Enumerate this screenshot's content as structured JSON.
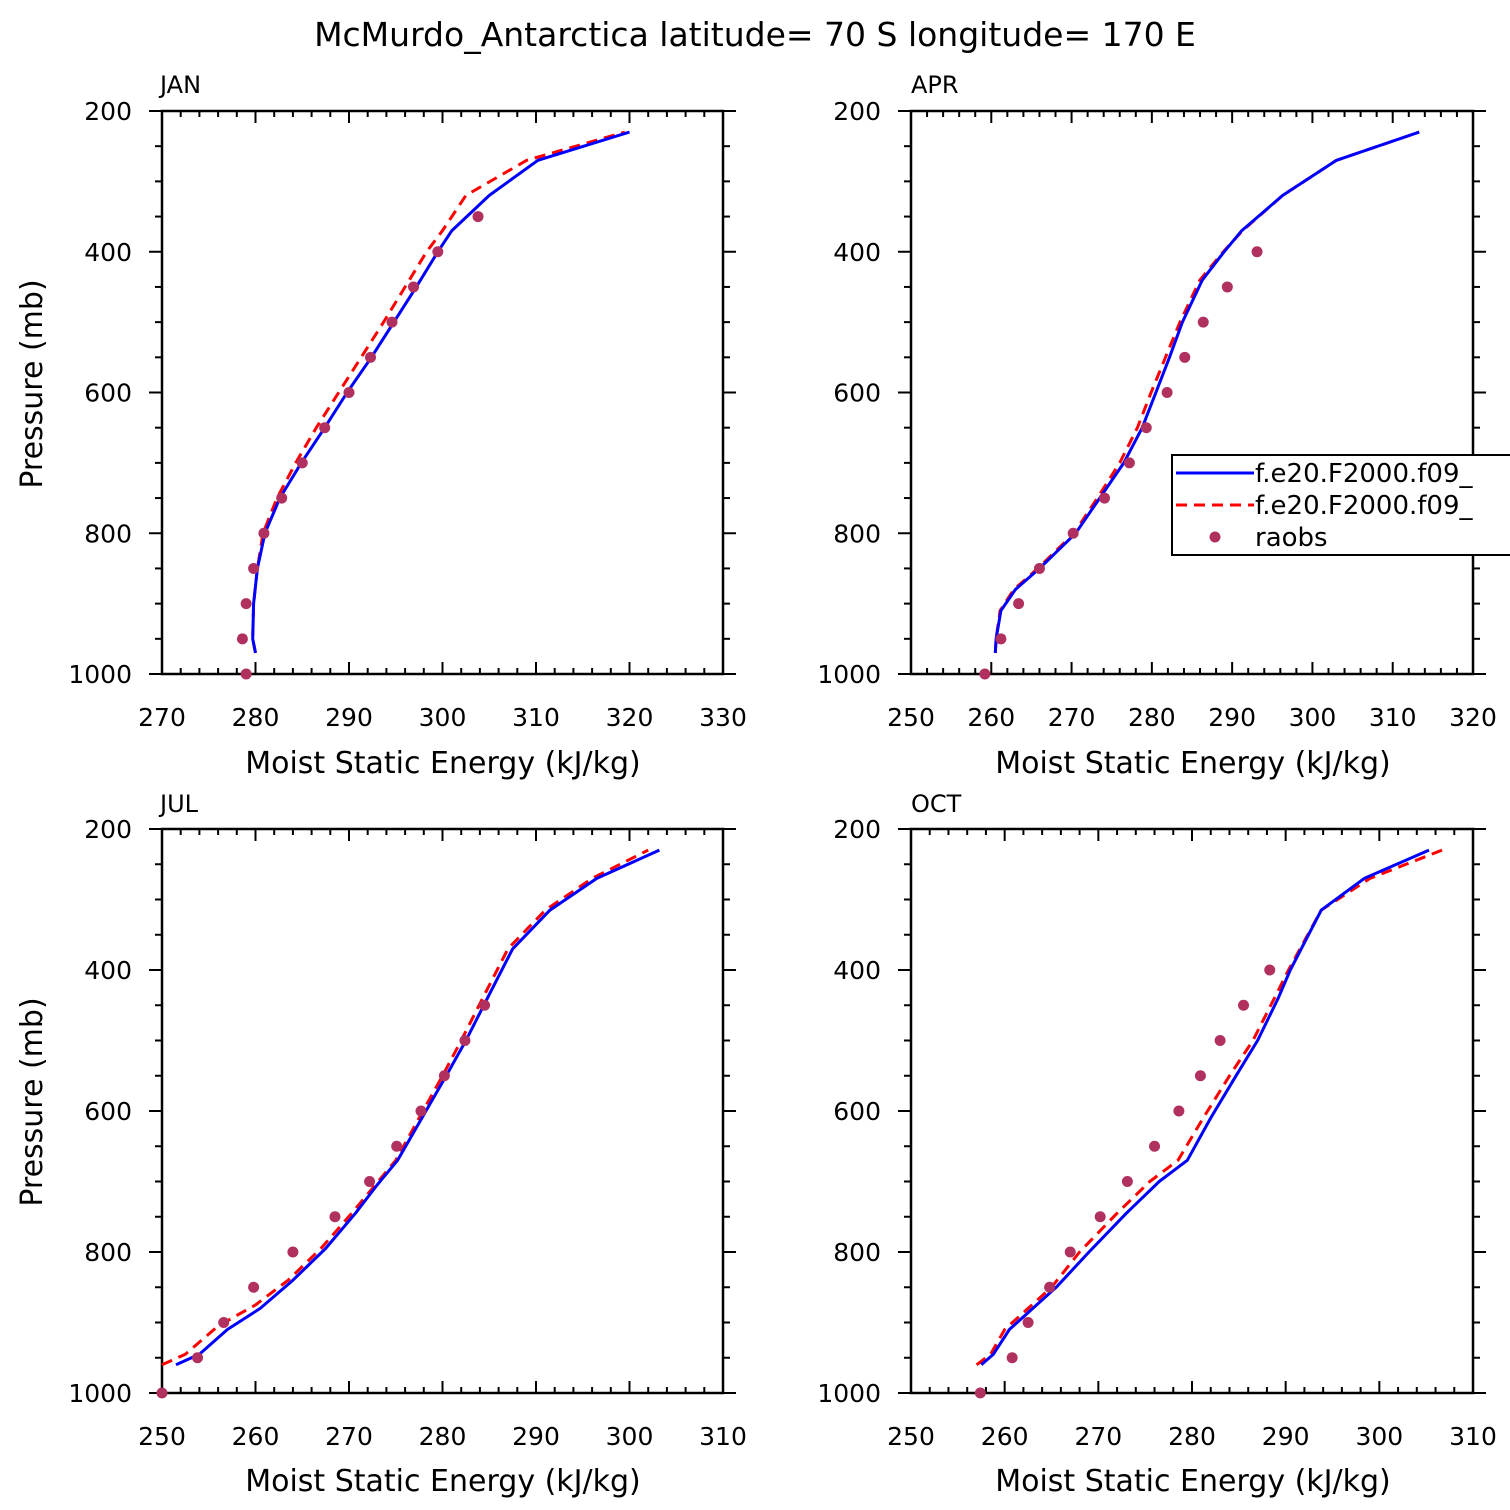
{
  "title": "McMurdo_Antarctica  latitude= 70 S longitude= 170 E",
  "legend": {
    "entries": [
      {
        "label": "f.e20.F2000.f09_",
        "style": "solid",
        "color": "#0000ff"
      },
      {
        "label": "f.e20.F2000.f09_",
        "style": "dashed",
        "color": "#ff0000"
      },
      {
        "label": "raobs",
        "style": "marker",
        "color": "#b03060"
      }
    ]
  },
  "colors": {
    "model1": "#0000ff",
    "model2": "#ff0000",
    "raobs": "#b03060"
  },
  "chart_data": [
    {
      "type": "line",
      "panel": "JAN",
      "xlabel": "Moist Static Energy (kJ/kg)",
      "ylabel": "Pressure (mb)",
      "xlim": [
        270,
        330
      ],
      "ylim": [
        1000,
        200
      ],
      "xticks": [
        "270",
        "280",
        "290",
        "300",
        "310",
        "320",
        "330"
      ],
      "yticks": [
        "200",
        "400",
        "600",
        "800",
        "1000"
      ],
      "series": [
        {
          "name": "f.e20.F2000.f09_",
          "style": "solid",
          "points": [
            [
              280.0,
              970
            ],
            [
              279.7,
              950
            ],
            [
              279.8,
              900
            ],
            [
              280.2,
              850
            ],
            [
              281.0,
              800
            ],
            [
              282.6,
              750
            ],
            [
              284.9,
              700
            ],
            [
              287.4,
              650
            ],
            [
              289.8,
              600
            ],
            [
              292.4,
              550
            ],
            [
              294.8,
              500
            ],
            [
              297.2,
              450
            ],
            [
              299.5,
              400
            ],
            [
              301.0,
              370
            ],
            [
              305.0,
              320
            ],
            [
              310.2,
              270
            ],
            [
              320.0,
              230
            ]
          ]
        },
        {
          "name": "f.e20.F2000.f09_",
          "style": "dashed",
          "points": [
            [
              280.0,
              970
            ],
            [
              279.7,
              950
            ],
            [
              279.8,
              900
            ],
            [
              280.2,
              850
            ],
            [
              280.8,
              800
            ],
            [
              282.3,
              750
            ],
            [
              284.3,
              700
            ],
            [
              286.5,
              650
            ],
            [
              288.9,
              600
            ],
            [
              291.3,
              550
            ],
            [
              293.7,
              500
            ],
            [
              296.0,
              450
            ],
            [
              298.3,
              400
            ],
            [
              300.0,
              370
            ],
            [
              302.5,
              320
            ],
            [
              309.0,
              270
            ],
            [
              319.5,
              230
            ]
          ]
        },
        {
          "name": "raobs",
          "style": "marker",
          "points": [
            [
              279.0,
              1000
            ],
            [
              278.6,
              950
            ],
            [
              279.0,
              900
            ],
            [
              279.8,
              850
            ],
            [
              280.9,
              800
            ],
            [
              282.8,
              750
            ],
            [
              285.0,
              700
            ],
            [
              287.4,
              650
            ],
            [
              290.0,
              600
            ],
            [
              292.3,
              550
            ],
            [
              294.6,
              500
            ],
            [
              296.9,
              450
            ],
            [
              299.5,
              400
            ],
            [
              303.8,
              350
            ]
          ]
        }
      ]
    },
    {
      "type": "line",
      "panel": "APR",
      "xlabel": "Moist Static Energy (kJ/kg)",
      "ylabel": "",
      "xlim": [
        250,
        320
      ],
      "ylim": [
        1000,
        200
      ],
      "xticks": [
        "250",
        "260",
        "270",
        "280",
        "290",
        "300",
        "310",
        "320"
      ],
      "yticks": [
        "200",
        "400",
        "600",
        "800",
        "1000"
      ],
      "series": [
        {
          "name": "f.e20.F2000.f09_",
          "style": "solid",
          "points": [
            [
              260.5,
              970
            ],
            [
              260.6,
              950
            ],
            [
              261.2,
              910
            ],
            [
              263.0,
              880
            ],
            [
              266.0,
              850
            ],
            [
              270.5,
              800
            ],
            [
              273.5,
              750
            ],
            [
              276.5,
              700
            ],
            [
              278.8,
              650
            ],
            [
              280.5,
              600
            ],
            [
              282.2,
              550
            ],
            [
              283.8,
              500
            ],
            [
              286.3,
              440
            ],
            [
              289.0,
              400
            ],
            [
              291.2,
              370
            ],
            [
              296.3,
              320
            ],
            [
              303.0,
              270
            ],
            [
              313.3,
              230
            ]
          ]
        },
        {
          "name": "f.e20.F2000.f09_",
          "style": "dashed",
          "points": [
            [
              260.5,
              970
            ],
            [
              260.6,
              950
            ],
            [
              261.1,
              910
            ],
            [
              262.8,
              880
            ],
            [
              265.8,
              850
            ],
            [
              270.3,
              800
            ],
            [
              273.2,
              750
            ],
            [
              276.0,
              700
            ],
            [
              278.2,
              650
            ],
            [
              279.9,
              600
            ],
            [
              281.7,
              550
            ],
            [
              283.5,
              500
            ],
            [
              286.0,
              440
            ],
            [
              288.9,
              400
            ],
            [
              291.3,
              370
            ],
            [
              296.3,
              320
            ],
            [
              303.0,
              270
            ],
            [
              313.3,
              230
            ]
          ]
        },
        {
          "name": "raobs",
          "style": "marker",
          "points": [
            [
              259.2,
              1000
            ],
            [
              261.2,
              950
            ],
            [
              263.4,
              900
            ],
            [
              266.0,
              850
            ],
            [
              270.2,
              800
            ],
            [
              274.1,
              750
            ],
            [
              277.2,
              700
            ],
            [
              279.3,
              650
            ],
            [
              281.9,
              600
            ],
            [
              284.1,
              550
            ],
            [
              286.4,
              500
            ],
            [
              289.4,
              450
            ],
            [
              293.1,
              400
            ]
          ]
        }
      ]
    },
    {
      "type": "line",
      "panel": "JUL",
      "xlabel": "Moist Static Energy (kJ/kg)",
      "ylabel": "Pressure (mb)",
      "xlim": [
        250,
        310
      ],
      "ylim": [
        1000,
        200
      ],
      "xticks": [
        "250",
        "260",
        "270",
        "280",
        "290",
        "300",
        "310"
      ],
      "yticks": [
        "200",
        "400",
        "600",
        "800",
        "1000"
      ],
      "series": [
        {
          "name": "f.e20.F2000.f09_",
          "style": "solid",
          "points": [
            [
              251.5,
              960
            ],
            [
              254.0,
              945
            ],
            [
              257.0,
              910
            ],
            [
              260.5,
              880
            ],
            [
              264.0,
              840
            ],
            [
              267.5,
              795
            ],
            [
              270.7,
              745
            ],
            [
              273.0,
              705
            ],
            [
              275.2,
              670
            ],
            [
              277.8,
              610
            ],
            [
              280.4,
              550
            ],
            [
              282.5,
              500
            ],
            [
              284.8,
              440
            ],
            [
              287.5,
              370
            ],
            [
              291.5,
              315
            ],
            [
              296.5,
              270
            ],
            [
              303.2,
              230
            ]
          ]
        },
        {
          "name": "f.e20.F2000.f09_",
          "style": "dashed",
          "points": [
            [
              250.0,
              960
            ],
            [
              252.5,
              945
            ],
            [
              256.0,
              905
            ],
            [
              260.0,
              875
            ],
            [
              263.5,
              840
            ],
            [
              267.0,
              795
            ],
            [
              270.3,
              745
            ],
            [
              272.8,
              705
            ],
            [
              275.0,
              670
            ],
            [
              277.5,
              610
            ],
            [
              280.0,
              550
            ],
            [
              282.0,
              500
            ],
            [
              284.3,
              440
            ],
            [
              287.0,
              370
            ],
            [
              291.0,
              315
            ],
            [
              296.0,
              270
            ],
            [
              302.0,
              230
            ]
          ]
        },
        {
          "name": "raobs",
          "style": "marker",
          "points": [
            [
              250.0,
              1000
            ],
            [
              253.8,
              950
            ],
            [
              256.6,
              900
            ],
            [
              259.8,
              850
            ],
            [
              264.0,
              800
            ],
            [
              268.5,
              750
            ],
            [
              272.2,
              700
            ],
            [
              275.1,
              650
            ],
            [
              277.7,
              600
            ],
            [
              280.2,
              550
            ],
            [
              282.4,
              500
            ],
            [
              284.5,
              450
            ]
          ]
        }
      ]
    },
    {
      "type": "line",
      "panel": "OCT",
      "xlabel": "Moist Static Energy (kJ/kg)",
      "ylabel": "",
      "xlim": [
        250,
        310
      ],
      "ylim": [
        1000,
        200
      ],
      "xticks": [
        "250",
        "260",
        "270",
        "280",
        "290",
        "300",
        "310"
      ],
      "yticks": [
        "200",
        "400",
        "600",
        "800",
        "1000"
      ],
      "series": [
        {
          "name": "f.e20.F2000.f09_",
          "style": "solid",
          "points": [
            [
              257.5,
              960
            ],
            [
              258.8,
              945
            ],
            [
              260.5,
              910
            ],
            [
              263.0,
              880
            ],
            [
              265.5,
              850
            ],
            [
              269.0,
              800
            ],
            [
              273.0,
              745
            ],
            [
              276.5,
              700
            ],
            [
              279.5,
              670
            ],
            [
              282.0,
              610
            ],
            [
              284.7,
              550
            ],
            [
              287.0,
              500
            ],
            [
              289.2,
              440
            ],
            [
              290.5,
              400
            ],
            [
              293.8,
              315
            ],
            [
              298.4,
              270
            ],
            [
              305.3,
              230
            ]
          ]
        },
        {
          "name": "f.e20.F2000.f09_",
          "style": "dashed",
          "points": [
            [
              257.0,
              960
            ],
            [
              258.5,
              945
            ],
            [
              260.0,
              910
            ],
            [
              262.5,
              880
            ],
            [
              265.0,
              850
            ],
            [
              268.0,
              800
            ],
            [
              272.0,
              745
            ],
            [
              275.5,
              700
            ],
            [
              278.5,
              670
            ],
            [
              281.2,
              610
            ],
            [
              284.0,
              550
            ],
            [
              286.5,
              500
            ],
            [
              288.8,
              440
            ],
            [
              290.3,
              400
            ],
            [
              293.8,
              315
            ],
            [
              299.0,
              270
            ],
            [
              306.7,
              230
            ]
          ]
        },
        {
          "name": "raobs",
          "style": "marker",
          "points": [
            [
              257.4,
              1000
            ],
            [
              260.8,
              950
            ],
            [
              262.5,
              900
            ],
            [
              264.8,
              850
            ],
            [
              267.0,
              800
            ],
            [
              270.2,
              750
            ],
            [
              273.1,
              700
            ],
            [
              276.0,
              650
            ],
            [
              278.6,
              600
            ],
            [
              280.9,
              550
            ],
            [
              283.0,
              500
            ],
            [
              285.5,
              450
            ],
            [
              288.3,
              400
            ]
          ]
        }
      ]
    }
  ]
}
